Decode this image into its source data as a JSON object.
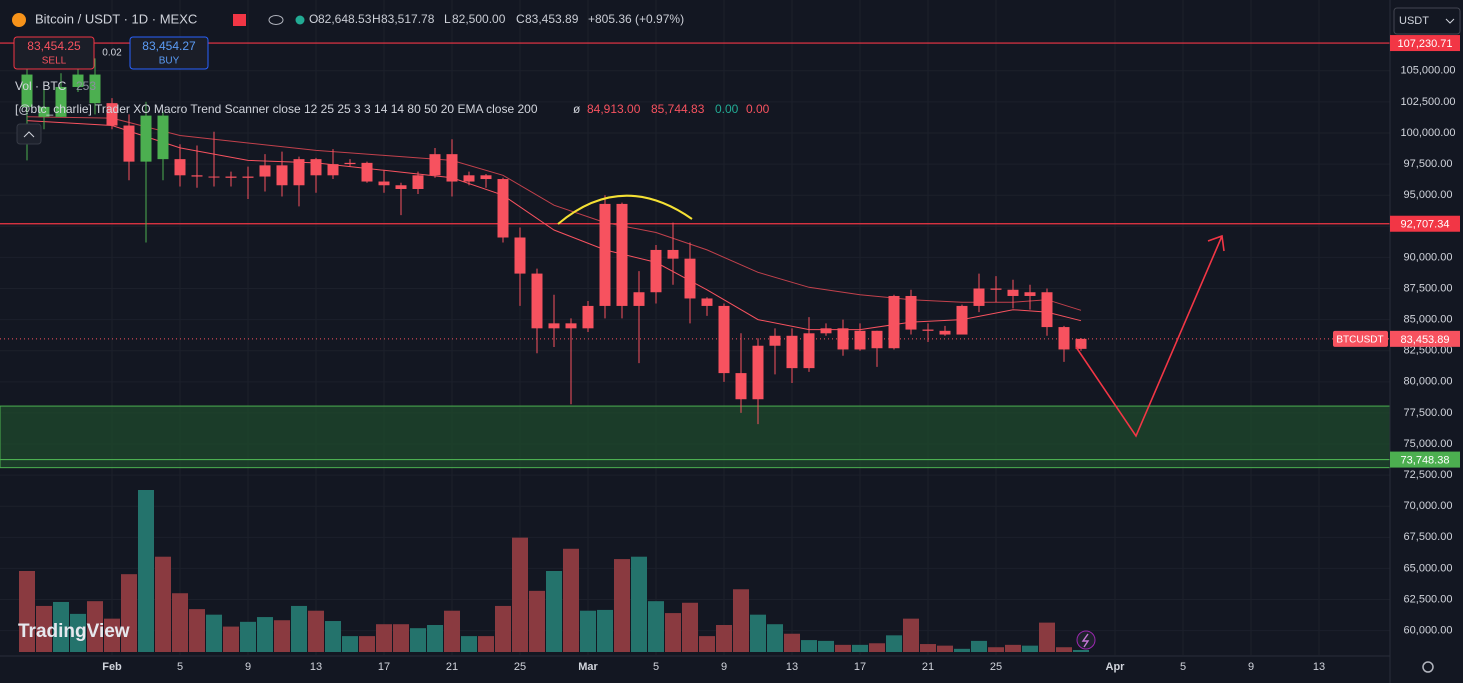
{
  "header": {
    "symbol": "Bitcoin / USDT · 1D · MEXC",
    "fields": [
      {
        "key": "O",
        "value": "82,648.53"
      },
      {
        "key": "H",
        "value": "83,517.78"
      },
      {
        "key": "L",
        "value": "82,500.00"
      },
      {
        "key": "C",
        "value": "83,453.89"
      }
    ],
    "change": "+805.36 (+0.97%)",
    "currency": "USDT"
  },
  "trade": {
    "sell_price": "83,454.25",
    "sell": "SELL",
    "spread": "0.02",
    "buy_price": "83,454.27",
    "buy": "BUY"
  },
  "indicator": {
    "name": "[@btc_charlie] Trader XO Macro Trend Scanner close 12 25 25 3 3 14 14 80 50 20 EMA close 200",
    "symbol": "ø",
    "values": [
      "84,913.00",
      "85,744.83",
      "0.00",
      "0.00"
    ]
  },
  "watermark": "TradingView",
  "chart_data": {
    "type": "candlestick",
    "x": [
      "01-27",
      "01-28",
      "01-29",
      "01-30",
      "01-31",
      "02-01",
      "02-02",
      "02-03",
      "02-04",
      "02-05",
      "02-06",
      "02-07",
      "02-08",
      "02-09",
      "02-10",
      "02-11",
      "02-12",
      "02-13",
      "02-14",
      "02-15",
      "02-16",
      "02-17",
      "02-18",
      "02-19",
      "02-20",
      "02-21",
      "02-22",
      "02-23",
      "02-24",
      "02-25",
      "02-26",
      "02-27",
      "02-28",
      "03-01",
      "03-02",
      "03-03",
      "03-04",
      "03-05",
      "03-06",
      "03-07",
      "03-08",
      "03-09",
      "03-10",
      "03-11",
      "03-12",
      "03-13",
      "03-14",
      "03-15",
      "03-16",
      "03-17",
      "03-18",
      "03-19",
      "03-20",
      "03-21",
      "03-22",
      "03-23",
      "03-24",
      "03-25",
      "03-26",
      "03-27",
      "03-28",
      "03-29",
      "03-30"
    ],
    "open": [
      104700,
      102100,
      101300,
      103700,
      104700,
      102400,
      100600,
      97700,
      101400,
      97900,
      96600,
      96500,
      96500,
      96400,
      96500,
      97400,
      95800,
      97900,
      96600,
      97500,
      97600,
      96100,
      95800,
      95500,
      96600,
      98300,
      96100,
      96600,
      96300,
      91600,
      88700,
      84300,
      84700,
      84300,
      86100,
      94300,
      86100,
      87200,
      90600,
      89900,
      86700,
      86100,
      80700,
      78600,
      82900,
      83700,
      81100,
      83900,
      84300,
      82600,
      84100,
      82700,
      86900,
      84200,
      84100,
      83800,
      86100,
      87500,
      87400,
      86900,
      87200,
      84400,
      82648.53
    ],
    "high": [
      105200,
      103800,
      104800,
      106400,
      106000,
      102800,
      101500,
      102500,
      101700,
      99100,
      99000,
      100100,
      96900,
      97300,
      98300,
      98500,
      98100,
      98000,
      98700,
      97900,
      97700,
      97000,
      96000,
      96900,
      98800,
      99500,
      96900,
      96700,
      96400,
      92400,
      89100,
      87000,
      85100,
      86500,
      95000,
      94400,
      88900,
      91000,
      92800,
      91200,
      86800,
      86300,
      83900,
      83500,
      84300,
      84300,
      85200,
      84700,
      85000,
      84700,
      84100,
      87000,
      87400,
      84700,
      84500,
      86200,
      88700,
      88500,
      88200,
      87800,
      87500,
      84500,
      83517.78
    ],
    "low": [
      97800,
      100300,
      101300,
      103300,
      101500,
      100300,
      96200,
      91200,
      96200,
      95700,
      95600,
      95700,
      95700,
      94700,
      95300,
      94900,
      94100,
      95200,
      96300,
      97300,
      96000,
      95200,
      93400,
      95100,
      96400,
      94900,
      95800,
      95600,
      91200,
      86100,
      82300,
      82800,
      78200,
      84000,
      85100,
      85100,
      81500,
      86300,
      87800,
      84700,
      85300,
      80000,
      77500,
      76600,
      80600,
      79900,
      80800,
      83700,
      82100,
      82500,
      81200,
      82600,
      83800,
      83200,
      83700,
      83800,
      85600,
      86400,
      85900,
      85800,
      83700,
      81600,
      82500
    ],
    "close": [
      102100,
      101300,
      103700,
      104700,
      102400,
      100600,
      97700,
      101400,
      97900,
      96600,
      96500,
      96500,
      96400,
      96500,
      97400,
      95800,
      97900,
      96600,
      97500,
      97600,
      96100,
      95800,
      95500,
      96600,
      98300,
      96100,
      96600,
      96300,
      91600,
      88700,
      84300,
      84700,
      84300,
      86100,
      94300,
      86100,
      87200,
      90600,
      89900,
      86700,
      86100,
      80700,
      78600,
      82900,
      83700,
      81100,
      83900,
      84300,
      82600,
      84100,
      82700,
      86900,
      84200,
      84100,
      83800,
      86100,
      87500,
      87400,
      86900,
      87200,
      84400,
      82600,
      83453.89
    ],
    "candle_colors": [
      "#4caf50",
      "#4caf50",
      "#4caf50",
      "#4caf50",
      "#4caf50",
      "#f7525f",
      "#f7525f",
      "#4caf50",
      "#4caf50",
      "#f7525f",
      "#f7525f",
      "#f7525f",
      "#f7525f",
      "#f7525f",
      "#f7525f",
      "#f7525f",
      "#f7525f",
      "#f7525f",
      "#f7525f",
      "#f7525f",
      "#f7525f",
      "#f7525f",
      "#f7525f",
      "#f7525f",
      "#f7525f",
      "#f7525f",
      "#f7525f",
      "#f7525f",
      "#f7525f",
      "#f7525f",
      "#f7525f",
      "#f7525f",
      "#f7525f",
      "#f7525f",
      "#f7525f",
      "#f7525f",
      "#f7525f",
      "#f7525f",
      "#f7525f",
      "#f7525f",
      "#f7525f",
      "#f7525f",
      "#f7525f",
      "#f7525f",
      "#f7525f",
      "#f7525f",
      "#f7525f",
      "#f7525f",
      "#f7525f",
      "#f7525f",
      "#f7525f",
      "#f7525f",
      "#f7525f",
      "#f7525f",
      "#f7525f",
      "#f7525f",
      "#f7525f",
      "#f7525f",
      "#f7525f",
      "#f7525f",
      "#f7525f",
      "#f7525f",
      "#f7525f"
    ],
    "volume": {
      "name": "Vol · BTC",
      "up_color": "#24736c",
      "down_color": "#8a3a40",
      "values": [
        10200,
        5800,
        6300,
        4800,
        6400,
        4200,
        9800,
        20400,
        12000,
        7400,
        5400,
        4700,
        3200,
        3800,
        4400,
        4000,
        5800,
        5200,
        3900,
        2000,
        2000,
        3500,
        3500,
        3000,
        3400,
        5200,
        2000,
        2000,
        5800,
        14400,
        7700,
        10200,
        13000,
        5200,
        5300,
        11700,
        12000,
        6400,
        4900,
        6200,
        2000,
        3400,
        7900,
        4700,
        3500,
        2300,
        1500,
        1400,
        900,
        900,
        1100,
        2100,
        4200,
        1000,
        800,
        400,
        1400,
        600,
        900,
        800,
        3700,
        600,
        253
      ]
    },
    "lines": [
      {
        "color": "#f7525f",
        "x": [
          "01-27",
          "02-01",
          "02-05",
          "02-09",
          "02-13",
          "02-17",
          "02-21",
          "02-24",
          "02-27",
          "03-02",
          "03-05",
          "03-08",
          "03-11",
          "03-14",
          "03-17",
          "03-20",
          "03-23",
          "03-26",
          "03-28",
          "03-30"
        ],
        "values": [
          101000,
          100600,
          98800,
          97800,
          97600,
          97000,
          96400,
          95000,
          92200,
          90600,
          89600,
          87400,
          85000,
          84200,
          84200,
          84800,
          85000,
          85800,
          85600,
          84913
        ]
      },
      {
        "color": "#c2414c",
        "x": [
          "01-27",
          "02-01",
          "02-05",
          "02-09",
          "02-13",
          "02-17",
          "02-21",
          "02-24",
          "02-27",
          "03-02",
          "03-05",
          "03-08",
          "03-11",
          "03-14",
          "03-17",
          "03-20",
          "03-23",
          "03-26",
          "03-28",
          "03-30"
        ],
        "values": [
          101300,
          101200,
          99800,
          99200,
          98600,
          98200,
          97800,
          96600,
          94200,
          92800,
          92000,
          90600,
          88800,
          87600,
          87000,
          86600,
          86400,
          86400,
          86600,
          85744.83
        ]
      }
    ],
    "levels": [
      {
        "value": 107230.71,
        "label": "107,230.71",
        "color": "#f23645"
      },
      {
        "value": 92707.34,
        "label": "92,707.34",
        "color": "#f23645"
      },
      {
        "value": 73748.38,
        "label": "73,748.38",
        "color": "#4caf50"
      }
    ],
    "zone": {
      "range": [
        73100,
        78050
      ],
      "color": "#1f4a2c",
      "border": "#4caf50"
    },
    "last_price": {
      "name": "BTCUSDT",
      "value": 83453.89,
      "label": "83,453.89",
      "color": "#f7525f"
    },
    "xlim": [
      "01-26",
      "04-17"
    ],
    "xticks": [
      {
        "value": "02-01",
        "label": "Feb"
      },
      {
        "value": "02-05",
        "label": "5"
      },
      {
        "value": "02-09",
        "label": "9"
      },
      {
        "value": "02-13",
        "label": "13"
      },
      {
        "value": "02-17",
        "label": "17"
      },
      {
        "value": "02-21",
        "label": "21"
      },
      {
        "value": "02-25",
        "label": "25"
      },
      {
        "value": "03-01",
        "label": "Mar"
      },
      {
        "value": "03-05",
        "label": "5"
      },
      {
        "value": "03-09",
        "label": "9"
      },
      {
        "value": "03-13",
        "label": "13"
      },
      {
        "value": "03-17",
        "label": "17"
      },
      {
        "value": "03-21",
        "label": "21"
      },
      {
        "value": "03-25",
        "label": "25"
      },
      {
        "value": "04-01",
        "label": "Apr"
      },
      {
        "value": "04-05",
        "label": "5"
      },
      {
        "value": "04-09",
        "label": "9"
      },
      {
        "value": "04-13",
        "label": "13"
      }
    ],
    "ylim": [
      58040,
      110290
    ],
    "yticks": [
      {
        "value": 60000,
        "label": "60,000.00"
      },
      {
        "value": 62500,
        "label": "62,500.00"
      },
      {
        "value": 65000,
        "label": "65,000.00"
      },
      {
        "value": 67500,
        "label": "67,500.00"
      },
      {
        "value": 70000,
        "label": "70,000.00"
      },
      {
        "value": 72500,
        "label": "72,500.00"
      },
      {
        "value": 75000,
        "label": "75,000.00"
      },
      {
        "value": 77500,
        "label": "77,500.00"
      },
      {
        "value": 80000,
        "label": "80,000.00"
      },
      {
        "value": 82500,
        "label": "82,500.00"
      },
      {
        "value": 85000,
        "label": "85,000.00"
      },
      {
        "value": 87500,
        "label": "87,500.00"
      },
      {
        "value": 90000,
        "label": "90,000.00"
      },
      {
        "value": 92500,
        "label": "92,500.00"
      },
      {
        "value": 95000,
        "label": "95,000.00"
      },
      {
        "value": 97500,
        "label": "97,500.00"
      },
      {
        "value": 100000,
        "label": "100,000.00"
      },
      {
        "value": 102500,
        "label": "102,500.00"
      },
      {
        "value": 105000,
        "label": "105,000.00"
      }
    ],
    "grid": true,
    "grid_color": "#1c202b"
  }
}
